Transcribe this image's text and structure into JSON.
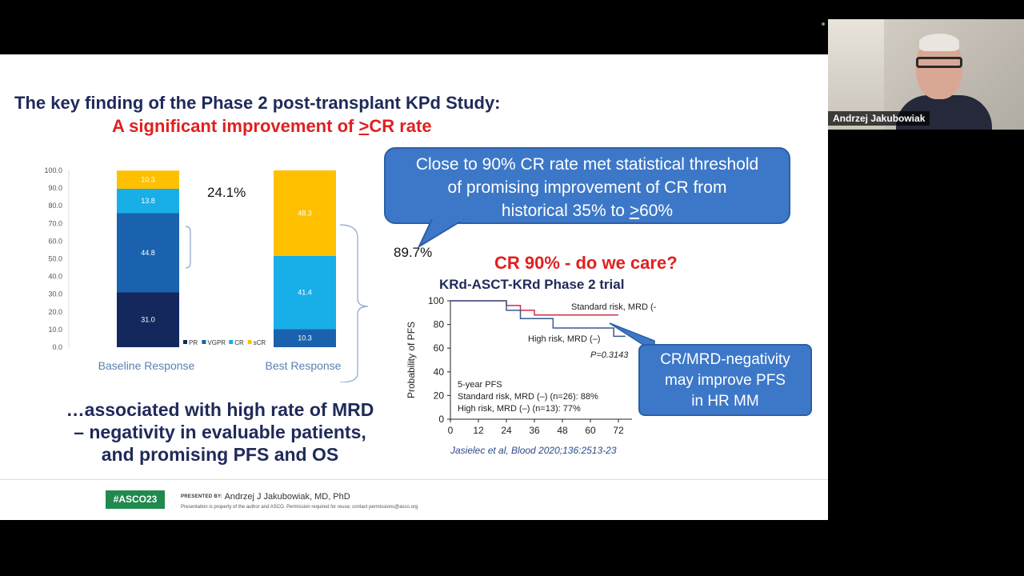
{
  "slide": {
    "title_line1": "The key finding of the Phase 2 post-transplant KPd Study:",
    "title_line2_pre": "A significant improvement of ",
    "title_line2_u": ">",
    "title_line2_post": "CR rate",
    "bracket_top_pct": "24.1%",
    "bracket_bottom_pct": "89.7%",
    "callout_line1": "Close to 90% CR rate met statistical threshold",
    "callout_line2": "of promising improvement of CR from",
    "callout_line3_pre": "historical 35% to ",
    "callout_line3_u": ">",
    "callout_line3_post": "60%",
    "cr90_heading": "CR 90% - do we care?",
    "krd_heading": "KRd-ASCT-KRd Phase 2 trial",
    "callout2_line1": "CR/MRD-negativity",
    "callout2_line2": "may improve PFS",
    "callout2_line3": "in HR MM",
    "assoc_line1": "…associated with high rate of MRD",
    "assoc_line2": "– negativity in evaluable patients,",
    "assoc_line3": "and promising PFS and OS",
    "citation": "Jasielec et al, Blood 2020;136:2513-23",
    "footer_tag": "#ASCO23",
    "presented_label": "PRESENTED BY:",
    "presenter": "Andrzej J Jakubowiak, MD, PhD",
    "disclaimer": "Presentation is property of the author and ASCO. Permission required for reuse; contact permissions@asco.org"
  },
  "webcam": {
    "name": "Andrzej Jakubowiak"
  },
  "colors": {
    "navy": "#1f2a5a",
    "red": "#e02020",
    "callout_blue": "#3d78c8",
    "PR": "#14285e",
    "VGPR": "#1a62ad",
    "CR": "#18aee8",
    "sCR": "#ffc000"
  },
  "chart_data": [
    {
      "type": "bar",
      "stacked": true,
      "categories": [
        "Baseline Response",
        "Best Response"
      ],
      "series": [
        {
          "name": "PR",
          "values": [
            31.0,
            0
          ]
        },
        {
          "name": "VGPR",
          "values": [
            44.8,
            10.3
          ]
        },
        {
          "name": "CR",
          "values": [
            13.8,
            41.4
          ]
        },
        {
          "name": "sCR",
          "values": [
            10.3,
            48.3
          ]
        }
      ],
      "data_labels": [
        [
          "31.0",
          "44.8",
          "13.8",
          "10.3"
        ],
        [
          "",
          "10.3",
          "41.4",
          "48.3"
        ]
      ],
      "ylim": [
        0,
        100
      ],
      "yticks": [
        "0.0",
        "10.0",
        "20.0",
        "30.0",
        "40.0",
        "50.0",
        "60.0",
        "70.0",
        "80.0",
        "90.0",
        "100.0"
      ],
      "legend": [
        "PR",
        "VGPR",
        "CR",
        "sCR"
      ],
      "legend_position": "bottom-right",
      "grid": false
    },
    {
      "type": "line",
      "step": true,
      "ylabel": "Probability of PFS",
      "xticks": [
        "0",
        "12",
        "24",
        "36",
        "48",
        "60",
        "72"
      ],
      "yticks": [
        "0",
        "20",
        "40",
        "60",
        "80",
        "100"
      ],
      "xlim": [
        0,
        80
      ],
      "ylim": [
        0,
        100
      ],
      "series": [
        {
          "name": "Standard risk, MRD (–)",
          "x": [
            0,
            24,
            24,
            30,
            30,
            36,
            36,
            48,
            48,
            52,
            52,
            60,
            60,
            72
          ],
          "y": [
            100,
            100,
            96,
            96,
            92,
            92,
            88,
            88,
            88,
            88,
            88,
            88,
            88,
            88
          ]
        },
        {
          "name": "High risk, MRD (–)",
          "x": [
            0,
            24,
            24,
            30,
            30,
            44,
            44,
            66,
            66,
            70,
            70,
            75
          ],
          "y": [
            100,
            100,
            92,
            92,
            85,
            85,
            77,
            77,
            77,
            77,
            70,
            70
          ]
        }
      ],
      "annotations": [
        "Standard risk, MRD (–)",
        "High risk, MRD (–)",
        "P=0.3143",
        "5-year PFS",
        "Standard risk, MRD (–) (n=26): 88%",
        "High risk, MRD (–) (n=13): 77%"
      ]
    }
  ]
}
